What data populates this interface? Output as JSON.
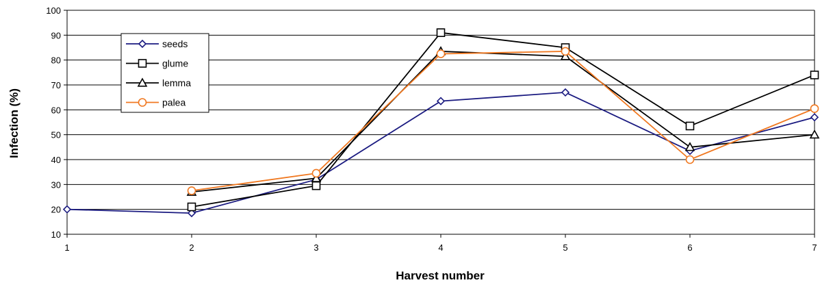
{
  "chart_data": {
    "type": "line",
    "title": "",
    "xlabel": "Harvest number",
    "ylabel": "Infection (%)",
    "x": [
      1,
      2,
      3,
      4,
      5,
      6,
      7
    ],
    "xlim": [
      1,
      7
    ],
    "ylim": [
      10,
      100
    ],
    "yticks": [
      10,
      20,
      30,
      40,
      50,
      60,
      70,
      80,
      90,
      100
    ],
    "grid": "horizontal",
    "legend_position": "top-left",
    "series": [
      {
        "name": "seeds",
        "marker": "diamond",
        "color": "#1a1a80",
        "values": [
          20,
          18.5,
          32,
          63.5,
          67,
          43.5,
          57
        ]
      },
      {
        "name": "glume",
        "marker": "square",
        "color": "#000000",
        "values": [
          null,
          21,
          29.5,
          91,
          85,
          53.5,
          74
        ]
      },
      {
        "name": "lemma",
        "marker": "triangle",
        "color": "#000000",
        "values": [
          null,
          27,
          32.5,
          83.5,
          81.5,
          45,
          50
        ]
      },
      {
        "name": "palea",
        "marker": "circle",
        "color": "#f07820",
        "values": [
          null,
          27.5,
          34.5,
          82.5,
          83.5,
          40,
          60.5
        ]
      }
    ]
  }
}
